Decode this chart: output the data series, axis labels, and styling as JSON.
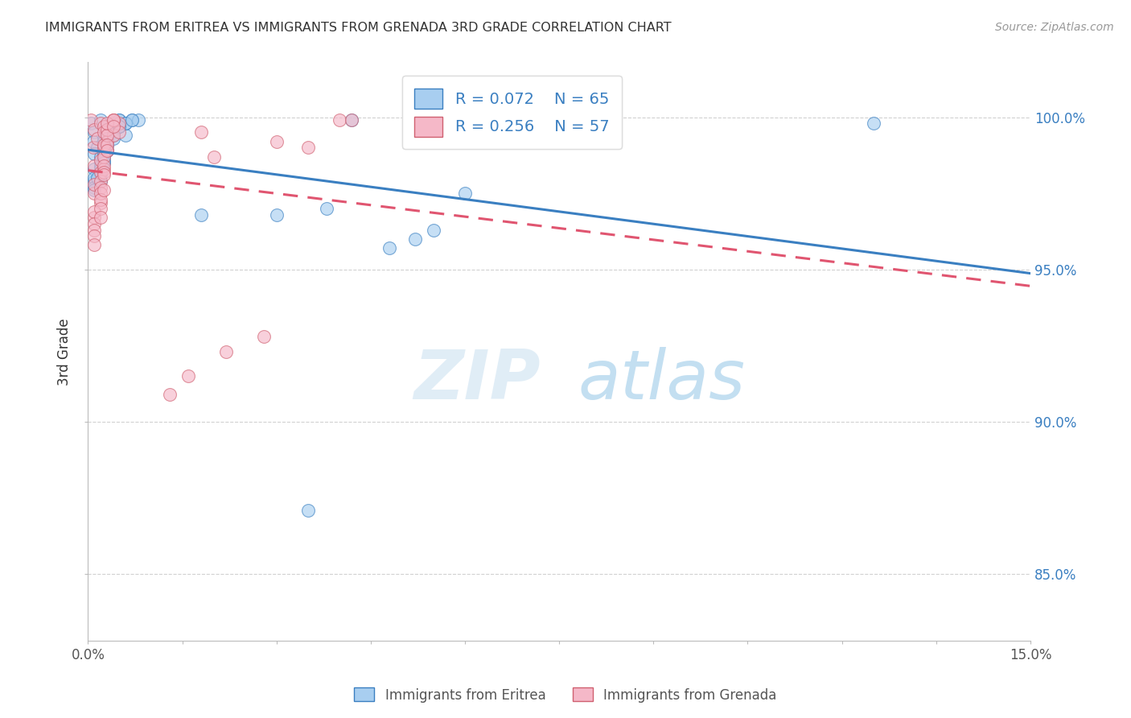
{
  "title": "IMMIGRANTS FROM ERITREA VS IMMIGRANTS FROM GRENADA 3RD GRADE CORRELATION CHART",
  "source": "Source: ZipAtlas.com",
  "ylabel": "3rd Grade",
  "x_min": 0.0,
  "x_max": 0.15,
  "y_min": 0.828,
  "y_max": 1.018,
  "x_ticks": [
    0.0,
    0.015,
    0.03,
    0.045,
    0.06,
    0.075,
    0.09,
    0.105,
    0.12,
    0.135,
    0.15
  ],
  "x_tick_labels_show": [
    "0.0%",
    "",
    "",
    "",
    "",
    "",
    "",
    "",
    "",
    "",
    "15.0%"
  ],
  "y_ticks": [
    0.85,
    0.9,
    0.95,
    1.0
  ],
  "y_tick_labels": [
    "85.0%",
    "90.0%",
    "95.0%",
    "100.0%"
  ],
  "legend_labels": [
    "Immigrants from Eritrea",
    "Immigrants from Grenada"
  ],
  "legend_R": [
    "R = 0.072",
    "R = 0.256"
  ],
  "legend_N": [
    "N = 65",
    "N = 57"
  ],
  "color_eritrea": "#a8cef0",
  "color_grenada": "#f5b8c8",
  "color_eritrea_line": "#3a7fc1",
  "color_grenada_line": "#e05570",
  "watermark_zip": "ZIP",
  "watermark_atlas": "atlas",
  "eritrea_x": [
    0.0005,
    0.001,
    0.0008,
    0.002,
    0.0015,
    0.003,
    0.001,
    0.0025,
    0.004,
    0.002,
    0.003,
    0.005,
    0.0025,
    0.002,
    0.001,
    0.004,
    0.006,
    0.003,
    0.0025,
    0.002,
    0.001,
    0.0025,
    0.004,
    0.002,
    0.003,
    0.005,
    0.0025,
    0.001,
    0.007,
    0.003,
    0.002,
    0.005,
    0.004,
    0.0025,
    0.001,
    0.003,
    0.006,
    0.008,
    0.002,
    0.004,
    0.003,
    0.005,
    0.002,
    0.003,
    0.001,
    0.0025,
    0.004,
    0.006,
    0.007,
    0.0025,
    0.0015,
    0.003,
    0.005,
    0.004,
    0.0025,
    0.038,
    0.052,
    0.06,
    0.042,
    0.018,
    0.03,
    0.125,
    0.055,
    0.048,
    0.035
  ],
  "eritrea_y": [
    0.998,
    0.995,
    0.992,
    0.999,
    0.99,
    0.997,
    0.988,
    0.993,
    0.998,
    0.985,
    0.996,
    0.999,
    0.991,
    0.987,
    0.983,
    0.997,
    0.994,
    0.989,
    0.985,
    0.981,
    0.979,
    0.992,
    0.996,
    0.984,
    0.993,
    0.999,
    0.99,
    0.98,
    0.999,
    0.994,
    0.982,
    0.997,
    0.995,
    0.988,
    0.977,
    0.991,
    0.998,
    0.999,
    0.983,
    0.995,
    0.989,
    0.997,
    0.979,
    0.993,
    0.976,
    0.987,
    0.994,
    0.998,
    0.999,
    0.986,
    0.98,
    0.991,
    0.997,
    0.993,
    0.985,
    0.97,
    0.96,
    0.975,
    0.999,
    0.968,
    0.968,
    0.998,
    0.963,
    0.957,
    0.871
  ],
  "grenada_x": [
    0.0005,
    0.001,
    0.0008,
    0.002,
    0.0015,
    0.001,
    0.0025,
    0.003,
    0.002,
    0.001,
    0.0025,
    0.004,
    0.002,
    0.001,
    0.003,
    0.005,
    0.0025,
    0.002,
    0.001,
    0.004,
    0.0025,
    0.002,
    0.003,
    0.001,
    0.0025,
    0.004,
    0.002,
    0.003,
    0.001,
    0.0025,
    0.002,
    0.003,
    0.0025,
    0.001,
    0.004,
    0.002,
    0.005,
    0.0025,
    0.001,
    0.003,
    0.002,
    0.0025,
    0.001,
    0.004,
    0.002,
    0.003,
    0.0025,
    0.018,
    0.03,
    0.035,
    0.016,
    0.022,
    0.028,
    0.04,
    0.013,
    0.042,
    0.02
  ],
  "grenada_y": [
    0.999,
    0.996,
    0.99,
    0.998,
    0.993,
    0.984,
    0.997,
    0.989,
    0.982,
    0.975,
    0.995,
    0.999,
    0.986,
    0.978,
    0.992,
    0.998,
    0.983,
    0.972,
    0.967,
    0.994,
    0.99,
    0.979,
    0.996,
    0.969,
    0.991,
    0.999,
    0.977,
    0.994,
    0.965,
    0.987,
    0.975,
    0.998,
    0.984,
    0.963,
    0.999,
    0.973,
    0.995,
    0.982,
    0.961,
    0.991,
    0.97,
    0.981,
    0.958,
    0.997,
    0.967,
    0.989,
    0.976,
    0.995,
    0.992,
    0.99,
    0.915,
    0.923,
    0.928,
    0.999,
    0.909,
    0.999,
    0.987
  ]
}
